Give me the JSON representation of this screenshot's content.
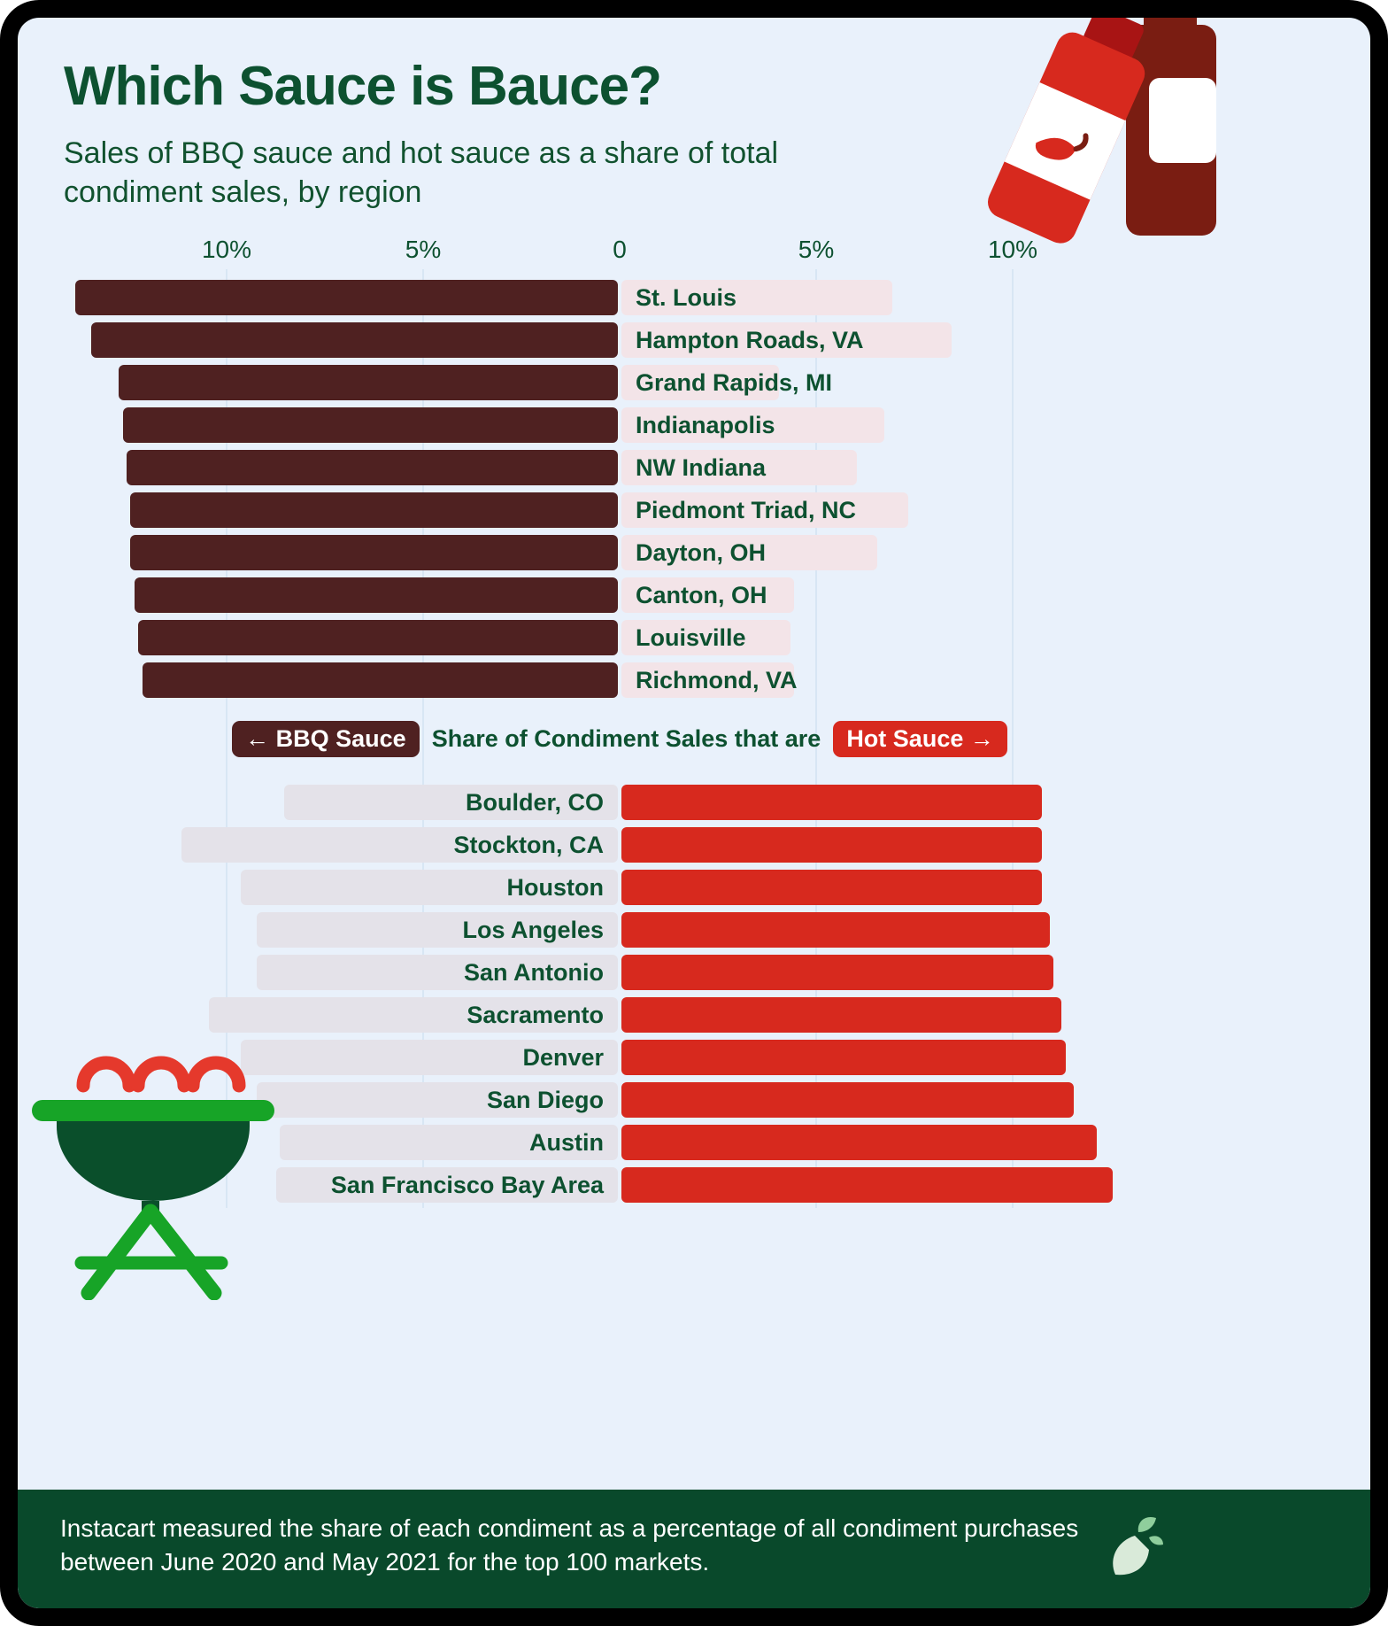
{
  "header": {
    "title": "Which Sauce is Bauce?",
    "subtitle": "Sales of BBQ sauce and hot sauce as a share of total condiment sales, by region"
  },
  "legend": {
    "bbq_label": "← BBQ Sauce",
    "middle_text": "Share of Condiment Sales that are",
    "hot_label": "Hot Sauce →"
  },
  "footer": {
    "note": "Instacart measured the share of each condiment as a percentage of all condiment purchases between June 2020 and May 2021 for the top 100 markets."
  },
  "colors": {
    "bbq_bar": "#4f2121",
    "hot_bar": "#d7291e",
    "hot_share_light_bar": "#f3e4e8",
    "bbq_share_light_bar": "#e4e2e9",
    "heading_green": "#0d5130",
    "footer_bg": "#09492b",
    "background": "#e9f1fb"
  },
  "icons": {
    "top_right": "hot-sauce-bottles-illustration",
    "bottom_left": "bbq-grill-illustration",
    "footer_logo": "instacart-carrot-logo"
  },
  "chart_data": {
    "type": "bar",
    "orientation": "horizontal-diverging",
    "unit": "percent of total condiment sales",
    "axis_ticks": [
      {
        "label": "10%",
        "value": -10
      },
      {
        "label": "5%",
        "value": -5
      },
      {
        "label": "0",
        "value": 0
      },
      {
        "label": "5%",
        "value": 5
      },
      {
        "label": "10%",
        "value": 10
      }
    ],
    "left_series_name": "BBQ Sauce share",
    "right_series_name": "Hot Sauce share",
    "bbq_top_regions": [
      {
        "label": "St. Louis",
        "bbq": 13.8,
        "hot": 6.9
      },
      {
        "label": "Hampton Roads, VA",
        "bbq": 13.4,
        "hot": 8.4
      },
      {
        "label": "Grand Rapids, MI",
        "bbq": 12.7,
        "hot": 4.0
      },
      {
        "label": "Indianapolis",
        "bbq": 12.6,
        "hot": 6.7
      },
      {
        "label": "NW Indiana",
        "bbq": 12.5,
        "hot": 6.0
      },
      {
        "label": "Piedmont Triad, NC",
        "bbq": 12.4,
        "hot": 7.3
      },
      {
        "label": "Dayton, OH",
        "bbq": 12.4,
        "hot": 6.5
      },
      {
        "label": "Canton, OH",
        "bbq": 12.3,
        "hot": 4.4
      },
      {
        "label": "Louisville",
        "bbq": 12.2,
        "hot": 4.3
      },
      {
        "label": "Richmond, VA",
        "bbq": 12.1,
        "hot": 4.4
      }
    ],
    "hot_top_regions": [
      {
        "label": "Boulder, CO",
        "bbq": 8.5,
        "hot": 10.7
      },
      {
        "label": "Stockton, CA",
        "bbq": 11.1,
        "hot": 10.7
      },
      {
        "label": "Houston",
        "bbq": 9.6,
        "hot": 10.7
      },
      {
        "label": "Los Angeles",
        "bbq": 9.2,
        "hot": 10.9
      },
      {
        "label": "San Antonio",
        "bbq": 9.2,
        "hot": 11.0
      },
      {
        "label": "Sacramento",
        "bbq": 10.4,
        "hot": 11.2
      },
      {
        "label": "Denver",
        "bbq": 9.6,
        "hot": 11.3
      },
      {
        "label": "San Diego",
        "bbq": 9.2,
        "hot": 11.5
      },
      {
        "label": "Austin",
        "bbq": 8.6,
        "hot": 12.1
      },
      {
        "label": "San Francisco Bay Area",
        "bbq": 8.7,
        "hot": 12.5
      }
    ]
  }
}
